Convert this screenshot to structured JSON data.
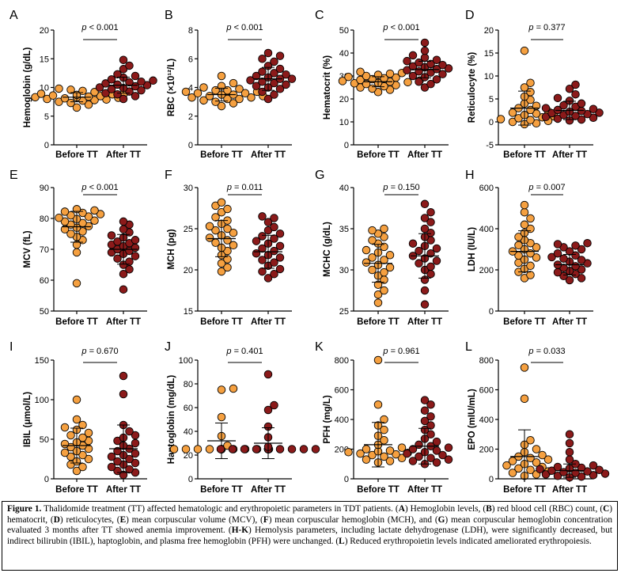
{
  "colors": {
    "before": "#f5a040",
    "after": "#8b1a1a",
    "line": "#000000"
  },
  "chart_data": [
    {
      "id": "A",
      "type": "scatter",
      "ylabel": "Hemoglobin (g/dL)",
      "ylim": [
        0,
        20
      ],
      "yticks": [
        0,
        5,
        10,
        15,
        20
      ],
      "yticklabels": [
        "0",
        "5",
        "10",
        "15",
        "20"
      ],
      "categories": [
        "Before TT",
        "After TT"
      ],
      "pvalue": "p < 0.001",
      "series": [
        {
          "name": "Before TT",
          "mean": 8.3,
          "sd": 0.8,
          "values": [
            6.5,
            7.0,
            7.3,
            7.5,
            7.7,
            7.8,
            7.9,
            8.0,
            8.1,
            8.2,
            8.3,
            8.3,
            8.4,
            8.5,
            8.6,
            8.7,
            8.8,
            8.9,
            9.0,
            9.2,
            9.4,
            9.6,
            9.8
          ]
        },
        {
          "name": "After TT",
          "mean": 10.4,
          "sd": 1.4,
          "values": [
            8.0,
            8.5,
            8.8,
            9.0,
            9.3,
            9.5,
            9.7,
            9.9,
            10.0,
            10.2,
            10.4,
            10.5,
            10.7,
            10.9,
            11.0,
            11.2,
            11.4,
            11.7,
            12.0,
            12.3,
            13.2,
            13.8,
            14.8
          ]
        }
      ]
    },
    {
      "id": "B",
      "type": "scatter",
      "ylabel": "RBC (×10¹²/L)",
      "ylim": [
        0,
        8
      ],
      "yticks": [
        0,
        2,
        4,
        6,
        8
      ],
      "yticklabels": [
        "0",
        "2",
        "4",
        "6",
        "8"
      ],
      "categories": [
        "Before TT",
        "After TT"
      ],
      "pvalue": "p < 0.001",
      "series": [
        {
          "name": "Before TT",
          "mean": 3.5,
          "sd": 0.45,
          "values": [
            2.7,
            2.9,
            3.0,
            3.1,
            3.2,
            3.2,
            3.3,
            3.3,
            3.4,
            3.4,
            3.5,
            3.5,
            3.6,
            3.6,
            3.7,
            3.7,
            3.8,
            3.8,
            3.9,
            4.0,
            4.1,
            4.3,
            4.8
          ]
        },
        {
          "name": "After TT",
          "mean": 4.6,
          "sd": 0.8,
          "values": [
            3.2,
            3.5,
            3.7,
            3.9,
            4.0,
            4.1,
            4.2,
            4.3,
            4.4,
            4.5,
            4.6,
            4.6,
            4.7,
            4.8,
            4.9,
            5.0,
            5.1,
            5.3,
            5.5,
            5.8,
            6.0,
            6.2,
            6.4
          ]
        }
      ]
    },
    {
      "id": "C",
      "type": "scatter",
      "ylabel": "Hematocrit (%)",
      "ylim": [
        0,
        50
      ],
      "yticks": [
        0,
        10,
        20,
        30,
        40,
        50
      ],
      "yticklabels": [
        "0",
        "10",
        "20",
        "30",
        "40",
        "50"
      ],
      "categories": [
        "Before TT",
        "After TT"
      ],
      "pvalue": "p < 0.001",
      "series": [
        {
          "name": "Before TT",
          "mean": 27.5,
          "sd": 2.2,
          "values": [
            23.0,
            24.0,
            24.5,
            25.0,
            25.5,
            26.0,
            26.5,
            26.8,
            27.0,
            27.3,
            27.5,
            27.8,
            28.0,
            28.3,
            28.6,
            29.0,
            29.3,
            29.6,
            30.0,
            30.5,
            31.0,
            31.3,
            31.8
          ]
        },
        {
          "name": "After TT",
          "mean": 32.8,
          "sd": 3.6,
          "values": [
            25.0,
            26.5,
            27.5,
            28.5,
            29.5,
            30.0,
            30.8,
            31.5,
            32.0,
            32.5,
            33.0,
            33.3,
            33.8,
            34.2,
            34.8,
            35.2,
            35.8,
            36.5,
            37.0,
            38.0,
            39.0,
            41.0,
            44.5
          ]
        }
      ]
    },
    {
      "id": "D",
      "type": "scatter",
      "ylabel": "Reticulocyte (%)",
      "ylim": [
        -5,
        20
      ],
      "yticks": [
        -5,
        0,
        5,
        10,
        15,
        20
      ],
      "yticklabels": [
        "-5",
        "0",
        "5",
        "10",
        "15",
        "20"
      ],
      "categories": [
        "Before TT",
        "After TT"
      ],
      "pvalue": "p = 0.377",
      "series": [
        {
          "name": "Before TT",
          "mean": 3.0,
          "sd": 3.7,
          "values": [
            -0.5,
            -0.3,
            0.0,
            0.2,
            0.4,
            0.6,
            0.8,
            1.0,
            1.2,
            1.5,
            1.8,
            2.0,
            2.3,
            2.6,
            3.0,
            3.5,
            4.0,
            4.8,
            5.5,
            6.5,
            7.5,
            8.5,
            15.5
          ]
        },
        {
          "name": "After TT",
          "mean": 2.5,
          "sd": 2.0,
          "values": [
            0.3,
            0.5,
            0.7,
            0.9,
            1.1,
            1.3,
            1.5,
            1.7,
            1.9,
            2.0,
            2.2,
            2.4,
            2.6,
            2.8,
            3.0,
            3.3,
            3.6,
            4.0,
            4.6,
            5.2,
            6.0,
            7.2,
            8.1
          ]
        }
      ]
    },
    {
      "id": "E",
      "type": "scatter",
      "ylabel": "MCV (fL)",
      "ylim": [
        50,
        90
      ],
      "yticks": [
        50,
        60,
        70,
        80,
        90
      ],
      "yticklabels": [
        "50",
        "60",
        "70",
        "80",
        "90"
      ],
      "categories": [
        "Before TT",
        "After TT"
      ],
      "pvalue": "p < 0.001",
      "series": [
        {
          "name": "Before TT",
          "mean": 77.3,
          "sd": 5.0,
          "values": [
            59.0,
            69.0,
            71.5,
            73.0,
            74.0,
            75.0,
            75.8,
            76.5,
            77.0,
            77.5,
            78.0,
            78.5,
            79.0,
            79.3,
            79.8,
            80.2,
            80.6,
            81.0,
            81.4,
            81.8,
            82.2,
            82.6,
            83.0
          ]
        },
        {
          "name": "After TT",
          "mean": 70.0,
          "sd": 4.8,
          "values": [
            57.0,
            62.0,
            63.5,
            65.0,
            66.0,
            67.0,
            67.8,
            68.5,
            69.0,
            69.5,
            70.0,
            70.5,
            71.0,
            71.5,
            72.0,
            72.5,
            73.0,
            73.8,
            74.5,
            75.5,
            76.5,
            78.0,
            79.0
          ]
        }
      ]
    },
    {
      "id": "F",
      "type": "scatter",
      "ylabel": "MCH (pg)",
      "ylim": [
        15,
        30
      ],
      "yticks": [
        15,
        20,
        25,
        30
      ],
      "yticklabels": [
        "15",
        "20",
        "25",
        "30"
      ],
      "categories": [
        "Before TT",
        "After TT"
      ],
      "pvalue": "p = 0.011",
      "series": [
        {
          "name": "Before TT",
          "mean": 23.8,
          "sd": 2.2,
          "values": [
            19.8,
            20.3,
            20.8,
            21.3,
            21.8,
            22.3,
            22.7,
            23.0,
            23.3,
            23.6,
            23.9,
            24.2,
            24.5,
            24.8,
            25.0,
            25.3,
            25.6,
            26.0,
            26.4,
            27.0,
            27.4,
            27.8,
            28.2
          ]
        },
        {
          "name": "After TT",
          "mean": 22.2,
          "sd": 2.0,
          "values": [
            19.0,
            19.5,
            19.8,
            20.1,
            20.5,
            20.9,
            21.2,
            21.5,
            21.8,
            22.0,
            22.3,
            22.6,
            22.9,
            23.2,
            23.5,
            23.8,
            24.1,
            24.4,
            24.8,
            25.2,
            25.8,
            26.3,
            26.5
          ]
        }
      ]
    },
    {
      "id": "G",
      "type": "scatter",
      "ylabel": "MCHC (g/dL)",
      "ylim": [
        25,
        40
      ],
      "yticks": [
        25,
        30,
        35,
        40
      ],
      "yticklabels": [
        "25",
        "30",
        "35",
        "40"
      ],
      "categories": [
        "Before TT",
        "After TT"
      ],
      "pvalue": "p = 0.150",
      "series": [
        {
          "name": "Before TT",
          "mean": 30.8,
          "sd": 2.3,
          "values": [
            26.0,
            27.0,
            27.5,
            28.2,
            28.8,
            29.3,
            29.7,
            30.0,
            30.3,
            30.6,
            30.9,
            31.2,
            31.5,
            31.8,
            32.1,
            32.4,
            32.8,
            33.2,
            33.6,
            34.0,
            34.4,
            34.8,
            35.0
          ]
        },
        {
          "name": "After TT",
          "mean": 31.7,
          "sd": 2.7,
          "values": [
            25.8,
            27.5,
            28.8,
            29.5,
            30.0,
            30.4,
            30.8,
            31.1,
            31.4,
            31.7,
            32.0,
            32.3,
            32.6,
            32.9,
            33.2,
            33.6,
            34.0,
            34.5,
            35.0,
            35.8,
            36.3,
            37.0,
            38.0
          ]
        }
      ]
    },
    {
      "id": "H",
      "type": "scatter",
      "ylabel": "LDH (IU/L)",
      "ylim": [
        0,
        600
      ],
      "yticks": [
        0,
        200,
        400,
        600
      ],
      "yticklabels": [
        "0",
        "200",
        "400",
        "600"
      ],
      "categories": [
        "Before TT",
        "After TT"
      ],
      "pvalue": "p = 0.007",
      "series": [
        {
          "name": "Before TT",
          "mean": 290,
          "sd": 100,
          "values": [
            160,
            175,
            190,
            205,
            220,
            235,
            250,
            260,
            270,
            280,
            290,
            300,
            310,
            320,
            330,
            345,
            360,
            380,
            400,
            420,
            450,
            480,
            515
          ]
        },
        {
          "name": "After TT",
          "mean": 225,
          "sd": 50,
          "values": [
            150,
            160,
            170,
            180,
            188,
            195,
            202,
            210,
            218,
            225,
            232,
            240,
            248,
            255,
            262,
            270,
            280,
            290,
            300,
            310,
            318,
            325,
            330
          ]
        }
      ]
    },
    {
      "id": "I",
      "type": "scatter",
      "ylabel": "IBIL (μmol/L)",
      "ylim": [
        0,
        150
      ],
      "yticks": [
        0,
        50,
        100,
        150
      ],
      "yticklabels": [
        "0",
        "50",
        "100",
        "150"
      ],
      "categories": [
        "Before TT",
        "After TT"
      ],
      "pvalue": "p = 0.670",
      "series": [
        {
          "name": "Before TT",
          "mean": 42,
          "sd": 22,
          "values": [
            10,
            15,
            18,
            22,
            25,
            28,
            30,
            33,
            35,
            38,
            40,
            42,
            44,
            46,
            48,
            52,
            55,
            58,
            62,
            65,
            68,
            75,
            100
          ]
        },
        {
          "name": "After TT",
          "mean": 38,
          "sd": 30,
          "values": [
            5,
            8,
            10,
            12,
            15,
            18,
            20,
            22,
            25,
            28,
            30,
            32,
            35,
            38,
            42,
            45,
            48,
            52,
            55,
            60,
            68,
            107,
            130
          ]
        }
      ]
    },
    {
      "id": "J",
      "type": "scatter",
      "ylabel": "Haptoglobin (mg/dL)",
      "ylim": [
        0,
        100
      ],
      "yticks": [
        0,
        20,
        40,
        60,
        80,
        100
      ],
      "yticklabels": [
        "0",
        "20",
        "40",
        "60",
        "80",
        "100"
      ],
      "categories": [
        "Before TT",
        "After TT"
      ],
      "pvalue": "p = 0.401",
      "series": [
        {
          "name": "Before TT",
          "mean": 32,
          "sd": 15,
          "values": [
            25,
            25,
            25,
            25,
            25,
            25,
            25,
            25,
            25,
            25,
            25,
            25,
            25,
            25,
            25,
            25,
            25,
            28,
            36,
            52,
            75,
            76
          ]
        },
        {
          "name": "After TT",
          "mean": 30,
          "sd": 13,
          "values": [
            25,
            25,
            25,
            25,
            25,
            25,
            25,
            25,
            25,
            25,
            25,
            25,
            25,
            25,
            25,
            25,
            25,
            25,
            27,
            35,
            44,
            58,
            62,
            88
          ]
        }
      ]
    },
    {
      "id": "K",
      "type": "scatter",
      "ylabel": "PFH (mg/L)",
      "ylim": [
        0,
        800
      ],
      "yticks": [
        0,
        200,
        400,
        600,
        800
      ],
      "yticklabels": [
        "0",
        "200",
        "400",
        "600",
        "800"
      ],
      "categories": [
        "Before TT",
        "After TT"
      ],
      "pvalue": "p = 0.961",
      "series": [
        {
          "name": "Before TT",
          "mean": 230,
          "sd": 150,
          "values": [
            110,
            120,
            130,
            140,
            150,
            160,
            165,
            170,
            175,
            180,
            185,
            190,
            200,
            210,
            230,
            260,
            290,
            330,
            360,
            400,
            500,
            800
          ]
        },
        {
          "name": "After TT",
          "mean": 220,
          "sd": 120,
          "values": [
            100,
            110,
            120,
            130,
            140,
            150,
            160,
            170,
            180,
            190,
            200,
            210,
            220,
            230,
            250,
            270,
            300,
            330,
            360,
            390,
            420,
            460,
            500,
            530
          ]
        }
      ]
    },
    {
      "id": "L",
      "type": "scatter",
      "ylabel": "EPO (mIU/mL)",
      "ylim": [
        0,
        800
      ],
      "yticks": [
        0,
        200,
        400,
        600,
        800
      ],
      "yticklabels": [
        "0",
        "200",
        "400",
        "600",
        "800"
      ],
      "categories": [
        "Before TT",
        "After TT"
      ],
      "pvalue": "p = 0.033",
      "series": [
        {
          "name": "Before TT",
          "mean": 150,
          "sd": 180,
          "values": [
            20,
            30,
            40,
            50,
            60,
            70,
            80,
            90,
            100,
            110,
            120,
            130,
            140,
            150,
            160,
            180,
            200,
            230,
            260,
            540,
            750
          ]
        },
        {
          "name": "After TT",
          "mean": 55,
          "sd": 45,
          "values": [
            10,
            15,
            20,
            25,
            30,
            35,
            40,
            45,
            50,
            55,
            60,
            65,
            70,
            75,
            80,
            90,
            100,
            130,
            180,
            240,
            300
          ]
        }
      ]
    }
  ],
  "caption": {
    "title": "Figure 1.",
    "segments": [
      {
        "text": " Thalidomide treatment (TT) affected hematologic and erythropoietic parameters in TDT patients. ("
      },
      {
        "text": "A",
        "bold": true
      },
      {
        "text": ") Hemoglobin levels, ("
      },
      {
        "text": "B",
        "bold": true
      },
      {
        "text": ") red blood cell (RBC) count, ("
      },
      {
        "text": "C",
        "bold": true
      },
      {
        "text": ") hematocrit, ("
      },
      {
        "text": "D",
        "bold": true
      },
      {
        "text": ") reticulocytes, ("
      },
      {
        "text": "E",
        "bold": true
      },
      {
        "text": ") mean corpuscular volume (MCV), ("
      },
      {
        "text": "F",
        "bold": true
      },
      {
        "text": ") mean corpuscular hemoglobin (MCH), and ("
      },
      {
        "text": "G",
        "bold": true
      },
      {
        "text": ") mean corpuscular hemoglobin concentration evaluated 3 months after TT showed anemia improvement. ("
      },
      {
        "text": "H-K",
        "bold": true
      },
      {
        "text": ") Hemolysis parameters, including lactate dehydrogenase (LDH), were significantly decreased, but indirect bilirubin (IBIL), haptoglobin, and plasma free hemoglobin (PFH) were unchanged. ("
      },
      {
        "text": "L",
        "bold": true
      },
      {
        "text": ") Reduced erythropoietin levels indicated ameliorated erythropoiesis."
      }
    ]
  }
}
